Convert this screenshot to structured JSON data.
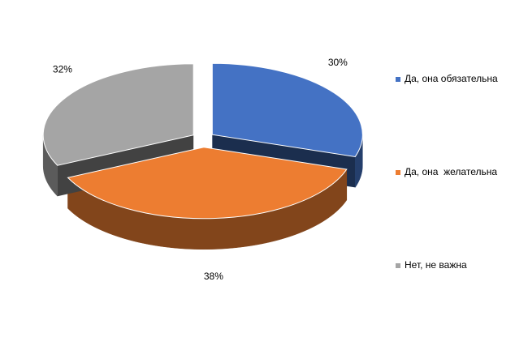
{
  "chart_data": {
    "type": "pie3d",
    "categories": [
      "Да, она обязательна",
      "Да, она  желательна",
      "Нет, не важна"
    ],
    "values": [
      30,
      38,
      32
    ],
    "value_labels": [
      "30%",
      "38%",
      "32%"
    ],
    "colors": [
      "#4472c4",
      "#ed7d31",
      "#a5a5a5"
    ],
    "legend": "right"
  }
}
